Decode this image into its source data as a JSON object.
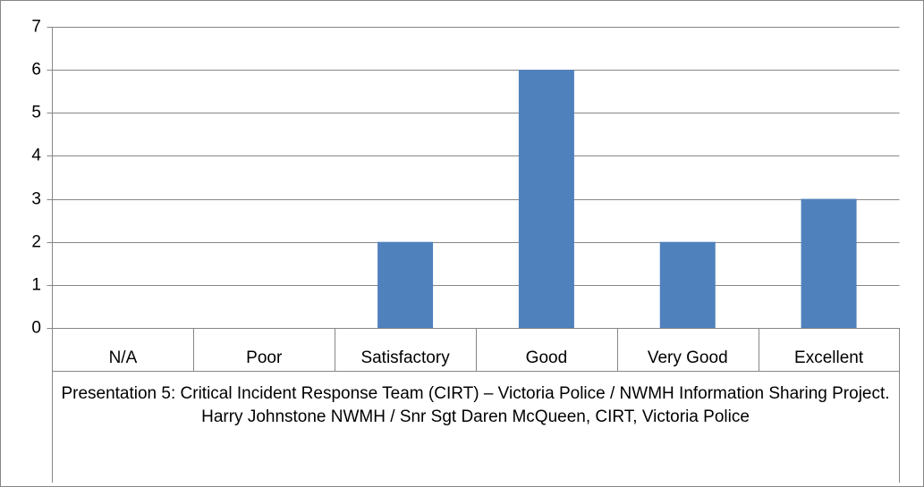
{
  "chart_data": {
    "type": "bar",
    "x_label": "Presentation 5: Critical Incident Response Team (CIRT) – Victoria Police / NWMH Information Sharing Project. Harry Johnstone NWMH / Snr Sgt Daren McQueen, CIRT, Victoria Police",
    "categories": [
      "N/A",
      "Poor",
      "Satisfactory",
      "Good",
      "Very Good",
      "Excellent"
    ],
    "values": [
      0,
      0,
      2,
      6,
      2,
      3
    ],
    "color": "#4f81bd",
    "ylim": [
      0,
      7
    ],
    "yticks": [
      0,
      1,
      2,
      3,
      4,
      5,
      6,
      7
    ],
    "grid": true
  }
}
